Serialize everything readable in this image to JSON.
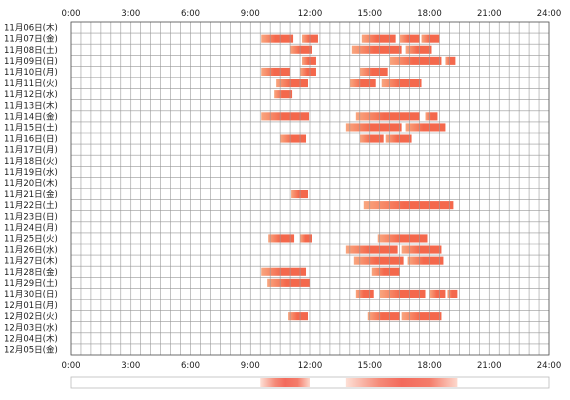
{
  "chart_data": {
    "type": "heatmap",
    "x_ticks": [
      "0:00",
      "3:00",
      "6:00",
      "9:00",
      "12:00",
      "15:00",
      "18:00",
      "21:00",
      "24:00"
    ],
    "xlim": [
      0,
      24
    ],
    "grid": true,
    "colors": {
      "bar": "#f4684c",
      "bar_light": "#f9a67f",
      "grid": "#999999",
      "border": "#555555"
    },
    "rows": [
      {
        "label": "11月06日(木)",
        "segments": []
      },
      {
        "label": "11月07日(金)",
        "segments": [
          [
            9.55,
            11.15
          ],
          [
            11.6,
            12.4
          ],
          [
            14.6,
            16.3
          ],
          [
            16.5,
            17.5
          ],
          [
            17.6,
            18.5
          ]
        ]
      },
      {
        "label": "11月08日(土)",
        "segments": [
          [
            11.0,
            12.1
          ],
          [
            14.1,
            16.6
          ],
          [
            16.8,
            18.1
          ]
        ]
      },
      {
        "label": "11月09日(日)",
        "segments": [
          [
            11.6,
            12.3
          ],
          [
            16.0,
            18.6
          ],
          [
            18.8,
            19.3
          ]
        ]
      },
      {
        "label": "11月10日(月)",
        "segments": [
          [
            9.55,
            11.0
          ],
          [
            11.5,
            12.3
          ],
          [
            14.5,
            15.9
          ]
        ]
      },
      {
        "label": "11月11日(火)",
        "segments": [
          [
            10.3,
            11.9
          ],
          [
            14.0,
            15.3
          ],
          [
            15.6,
            17.6
          ]
        ]
      },
      {
        "label": "11月12日(水)",
        "segments": [
          [
            10.2,
            11.1
          ]
        ]
      },
      {
        "label": "11月13日(木)",
        "segments": []
      },
      {
        "label": "11月14日(金)",
        "segments": [
          [
            9.55,
            11.95
          ],
          [
            14.3,
            17.5
          ],
          [
            17.8,
            18.4
          ]
        ]
      },
      {
        "label": "11月15日(土)",
        "segments": [
          [
            13.8,
            16.6
          ],
          [
            16.8,
            18.8
          ]
        ]
      },
      {
        "label": "11月16日(日)",
        "segments": [
          [
            10.5,
            11.8
          ],
          [
            14.5,
            15.7
          ],
          [
            15.8,
            17.1
          ]
        ]
      },
      {
        "label": "11月17日(月)",
        "segments": []
      },
      {
        "label": "11月18日(火)",
        "segments": []
      },
      {
        "label": "11月19日(水)",
        "segments": []
      },
      {
        "label": "11月20日(木)",
        "segments": []
      },
      {
        "label": "11月21日(金)",
        "segments": [
          [
            11.05,
            11.9
          ]
        ]
      },
      {
        "label": "11月22日(土)",
        "segments": [
          [
            14.7,
            19.2
          ]
        ]
      },
      {
        "label": "11月23日(日)",
        "segments": []
      },
      {
        "label": "11月24日(月)",
        "segments": []
      },
      {
        "label": "11月25日(火)",
        "segments": [
          [
            9.9,
            11.2
          ],
          [
            11.5,
            12.1
          ],
          [
            15.4,
            17.9
          ]
        ]
      },
      {
        "label": "11月26日(水)",
        "segments": [
          [
            13.8,
            16.4
          ],
          [
            16.6,
            18.6
          ]
        ]
      },
      {
        "label": "11月27日(木)",
        "segments": [
          [
            14.2,
            16.7
          ],
          [
            16.9,
            18.7
          ]
        ]
      },
      {
        "label": "11月28日(金)",
        "segments": [
          [
            9.55,
            11.8
          ],
          [
            15.1,
            16.5
          ]
        ]
      },
      {
        "label": "11月29日(土)",
        "segments": [
          [
            9.85,
            12.0
          ]
        ]
      },
      {
        "label": "11月30日(日)",
        "segments": [
          [
            14.3,
            15.2
          ],
          [
            15.5,
            17.8
          ],
          [
            18.0,
            18.8
          ],
          [
            18.9,
            19.4
          ]
        ]
      },
      {
        "label": "12月01日(月)",
        "segments": []
      },
      {
        "label": "12月02日(火)",
        "segments": [
          [
            10.9,
            11.9
          ],
          [
            14.9,
            16.5
          ],
          [
            16.6,
            18.6
          ]
        ]
      },
      {
        "label": "12月03日(水)",
        "segments": []
      },
      {
        "label": "12月04日(木)",
        "segments": []
      },
      {
        "label": "12月05日(金)",
        "segments": []
      }
    ],
    "density_strip": [
      {
        "from": 9.5,
        "to": 12.0
      },
      {
        "from": 13.8,
        "to": 19.4
      }
    ]
  }
}
